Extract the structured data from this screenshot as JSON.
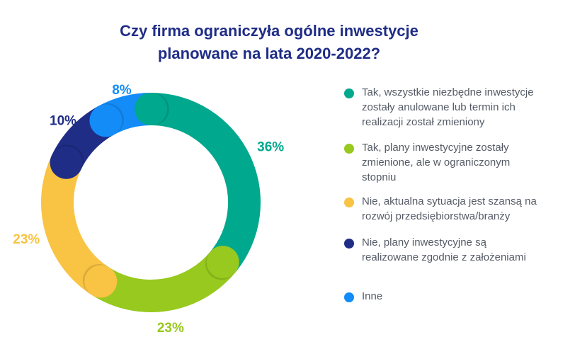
{
  "title_lines": [
    "Czy firma ograniczyła ogólne inwestycje",
    "planowane na lata 2020-2022?"
  ],
  "chart_data": {
    "type": "pie",
    "title": "Czy firma ograniczyła ogólne inwestycje planowane na lata 2020-2022?",
    "labels": [
      "Tak, wszystkie niezbędne inwestycje zostały anulowane lub termin ich realizacji został zmieniony",
      "Tak, plany inwestycyjne zostały zmienione, ale w ograniczonym stopniu",
      "Nie, aktualna sytuacja jest szansą na rozwój przedsiębiorstwa/branży",
      "Nie, plany inwestycyjne są realizowane zgodnie z założeniami",
      "Inne"
    ],
    "values": [
      36,
      23,
      23,
      10,
      8
    ],
    "value_labels": [
      "36%",
      "23%",
      "23%",
      "10%",
      "8%"
    ],
    "colors": [
      "#00a88e",
      "#97c91e",
      "#f9c343",
      "#1f2d86",
      "#138cf7"
    ],
    "legend_position": "right"
  },
  "legend": [
    {
      "lines": [
        "Tak, wszystkie niezbędne inwestycje",
        "zostały anulowane lub termin ich",
        "realizacji został zmieniony"
      ],
      "color": "#00a88e"
    },
    {
      "lines": [
        "Tak, plany inwestycyjne zostały",
        "zmienione, ale w ograniczonym",
        "stopniu"
      ],
      "color": "#97c91e"
    },
    {
      "lines": [
        "Nie, aktualna sytuacja jest szansą na",
        "rozwój przedsiębiorstwa/branży"
      ],
      "color": "#f9c343"
    },
    {
      "lines": [
        "Nie, plany inwestycyjne są",
        "realizowane zgodnie z założeniami"
      ],
      "color": "#1f2d86"
    },
    {
      "lines": [
        "Inne"
      ],
      "color": "#138cf7"
    }
  ]
}
